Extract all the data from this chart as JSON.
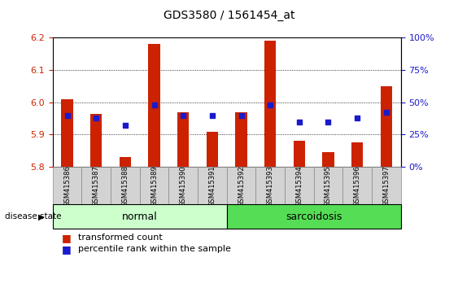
{
  "title": "GDS3580 / 1561454_at",
  "samples": [
    "GSM415386",
    "GSM415387",
    "GSM415388",
    "GSM415389",
    "GSM415390",
    "GSM415391",
    "GSM415392",
    "GSM415393",
    "GSM415394",
    "GSM415395",
    "GSM415396",
    "GSM415397"
  ],
  "transformed_count": [
    6.01,
    5.965,
    5.83,
    6.18,
    5.97,
    5.91,
    5.97,
    6.19,
    5.88,
    5.845,
    5.875,
    6.05
  ],
  "percentile_rank": [
    40,
    38,
    32,
    48,
    40,
    40,
    40,
    48,
    35,
    35,
    38,
    42
  ],
  "ylim_left": [
    5.8,
    6.2
  ],
  "ylim_right": [
    0,
    100
  ],
  "yticks_left": [
    5.8,
    5.9,
    6.0,
    6.1,
    6.2
  ],
  "yticks_right": [
    0,
    25,
    50,
    75,
    100
  ],
  "ytick_labels_right": [
    "0%",
    "25%",
    "50%",
    "75%",
    "100%"
  ],
  "bar_color": "#cc2200",
  "dot_color": "#1a1acc",
  "baseline": 5.8,
  "group_normal_indices": [
    0,
    1,
    2,
    3,
    4,
    5
  ],
  "group_sarcoidosis_indices": [
    6,
    7,
    8,
    9,
    10,
    11
  ],
  "group_normal_label": "normal",
  "group_sarcoidosis_label": "sarcoidosis",
  "color_normal": "#ccffcc",
  "color_sarcoidosis": "#55dd55",
  "disease_state_label": "disease state",
  "legend_red": "transformed count",
  "legend_blue": "percentile rank within the sample",
  "tick_color_left": "#cc2200",
  "tick_color_right": "#1a1acc",
  "bar_width": 0.4,
  "dot_marker_size": 4
}
